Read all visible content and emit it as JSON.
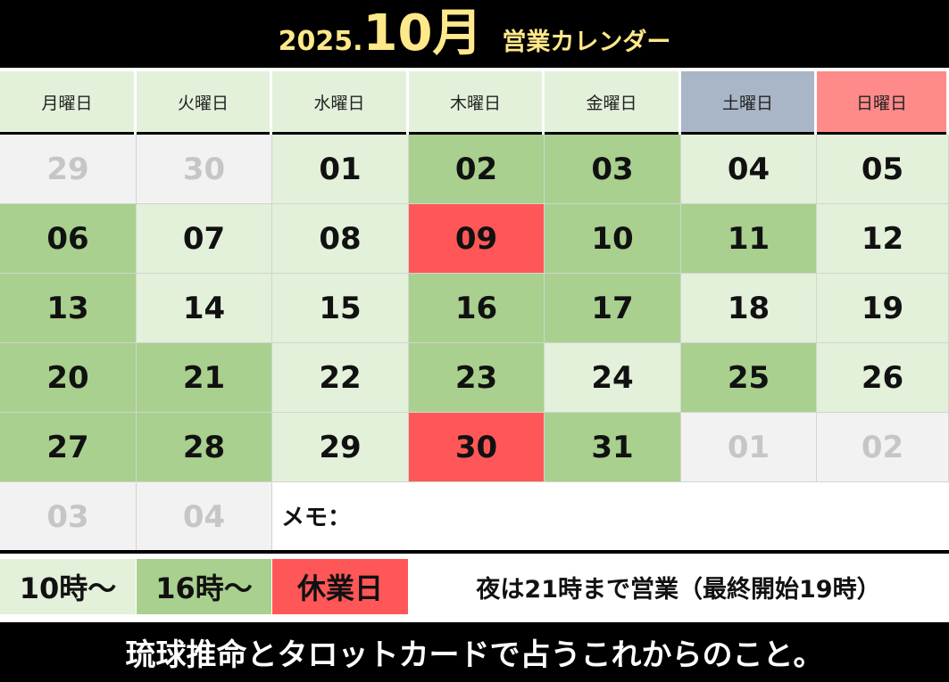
{
  "header": {
    "year": "2025.",
    "month": "10月",
    "subtitle": "営業カレンダー"
  },
  "colors": {
    "light": "#e3f0da",
    "green": "#a9d08e",
    "red": "#ff5757",
    "grey": "#f2f2f2",
    "saturday": "#a9b6c8",
    "sunday": "#ff8a8a"
  },
  "weekdays": [
    {
      "label": "月曜日",
      "color": "#e3f0da"
    },
    {
      "label": "火曜日",
      "color": "#e3f0da"
    },
    {
      "label": "水曜日",
      "color": "#e3f0da"
    },
    {
      "label": "木曜日",
      "color": "#e3f0da"
    },
    {
      "label": "金曜日",
      "color": "#e3f0da"
    },
    {
      "label": "土曜日",
      "color": "#a9b6c8"
    },
    {
      "label": "日曜日",
      "color": "#ff8a8a"
    }
  ],
  "weeks": [
    [
      {
        "d": "29",
        "t": "grey"
      },
      {
        "d": "30",
        "t": "grey"
      },
      {
        "d": "01",
        "t": "light"
      },
      {
        "d": "02",
        "t": "green"
      },
      {
        "d": "03",
        "t": "green"
      },
      {
        "d": "04",
        "t": "light"
      },
      {
        "d": "05",
        "t": "light"
      }
    ],
    [
      {
        "d": "06",
        "t": "green"
      },
      {
        "d": "07",
        "t": "light"
      },
      {
        "d": "08",
        "t": "light"
      },
      {
        "d": "09",
        "t": "red"
      },
      {
        "d": "10",
        "t": "green"
      },
      {
        "d": "11",
        "t": "green"
      },
      {
        "d": "12",
        "t": "light"
      }
    ],
    [
      {
        "d": "13",
        "t": "green"
      },
      {
        "d": "14",
        "t": "light"
      },
      {
        "d": "15",
        "t": "light"
      },
      {
        "d": "16",
        "t": "green"
      },
      {
        "d": "17",
        "t": "green"
      },
      {
        "d": "18",
        "t": "light"
      },
      {
        "d": "19",
        "t": "light"
      }
    ],
    [
      {
        "d": "20",
        "t": "green"
      },
      {
        "d": "21",
        "t": "green"
      },
      {
        "d": "22",
        "t": "light"
      },
      {
        "d": "23",
        "t": "green"
      },
      {
        "d": "24",
        "t": "light"
      },
      {
        "d": "25",
        "t": "green"
      },
      {
        "d": "26",
        "t": "light"
      }
    ],
    [
      {
        "d": "27",
        "t": "green"
      },
      {
        "d": "28",
        "t": "green"
      },
      {
        "d": "29",
        "t": "light"
      },
      {
        "d": "30",
        "t": "red"
      },
      {
        "d": "31",
        "t": "green"
      },
      {
        "d": "01",
        "t": "grey"
      },
      {
        "d": "02",
        "t": "grey"
      }
    ],
    [
      {
        "d": "03",
        "t": "grey"
      },
      {
        "d": "04",
        "t": "grey"
      }
    ]
  ],
  "memo_label": "メモ：",
  "legend": {
    "items": [
      {
        "label": "10時～",
        "t": "light"
      },
      {
        "label": "16時～",
        "t": "green"
      },
      {
        "label": "休業日",
        "t": "red"
      }
    ],
    "note": "夜は21時まで営業（最終開始19時）"
  },
  "footer": "琉球推命とタロットカードで占うこれからのこと。"
}
